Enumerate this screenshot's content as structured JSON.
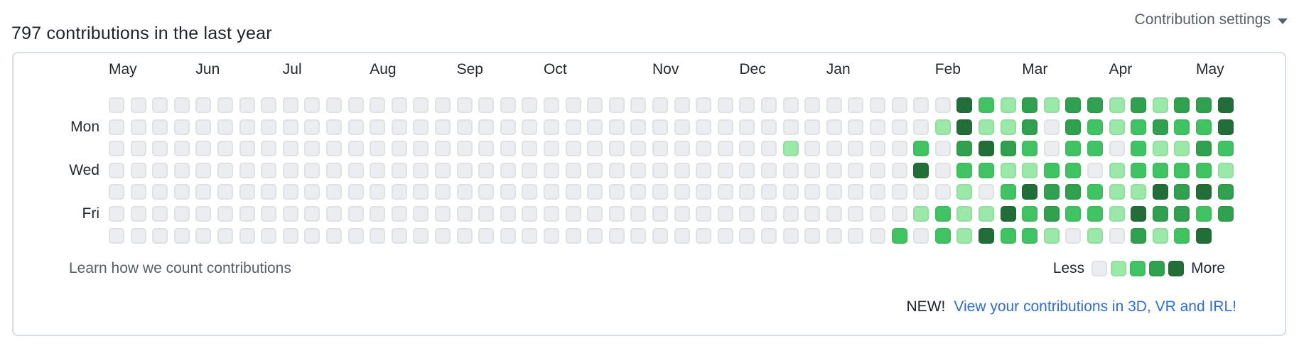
{
  "header": {
    "title": "797 contributions in the last year",
    "settings_label": "Contribution settings"
  },
  "calendar": {
    "type": "heatmap",
    "day_labels": [
      {
        "label": "Mon",
        "row": 1
      },
      {
        "label": "Wed",
        "row": 3
      },
      {
        "label": "Fri",
        "row": 5
      }
    ],
    "month_labels": [
      {
        "label": "May",
        "week": 0
      },
      {
        "label": "Jun",
        "week": 4
      },
      {
        "label": "Jul",
        "week": 8
      },
      {
        "label": "Aug",
        "week": 12
      },
      {
        "label": "Sep",
        "week": 16
      },
      {
        "label": "Oct",
        "week": 20
      },
      {
        "label": "Nov",
        "week": 25
      },
      {
        "label": "Dec",
        "week": 29
      },
      {
        "label": "Jan",
        "week": 33
      },
      {
        "label": "Feb",
        "week": 38
      },
      {
        "label": "Mar",
        "week": 42
      },
      {
        "label": "Apr",
        "week": 46
      },
      {
        "label": "May",
        "week": 50
      }
    ],
    "levels_palette": [
      "#ebedf0",
      "#9be9a8",
      "#40c463",
      "#30a14e",
      "#216e39"
    ],
    "weeks": [
      [
        0,
        0,
        0,
        0,
        0,
        0,
        0
      ],
      [
        0,
        0,
        0,
        0,
        0,
        0,
        0
      ],
      [
        0,
        0,
        0,
        0,
        0,
        0,
        0
      ],
      [
        0,
        0,
        0,
        0,
        0,
        0,
        0
      ],
      [
        0,
        0,
        0,
        0,
        0,
        0,
        0
      ],
      [
        0,
        0,
        0,
        0,
        0,
        0,
        0
      ],
      [
        0,
        0,
        0,
        0,
        0,
        0,
        0
      ],
      [
        0,
        0,
        0,
        0,
        0,
        0,
        0
      ],
      [
        0,
        0,
        0,
        0,
        0,
        0,
        0
      ],
      [
        0,
        0,
        0,
        0,
        0,
        0,
        0
      ],
      [
        0,
        0,
        0,
        0,
        0,
        0,
        0
      ],
      [
        0,
        0,
        0,
        0,
        0,
        0,
        0
      ],
      [
        0,
        0,
        0,
        0,
        0,
        0,
        0
      ],
      [
        0,
        0,
        0,
        0,
        0,
        0,
        0
      ],
      [
        0,
        0,
        0,
        0,
        0,
        0,
        0
      ],
      [
        0,
        0,
        0,
        0,
        0,
        0,
        0
      ],
      [
        0,
        0,
        0,
        0,
        0,
        0,
        0
      ],
      [
        0,
        0,
        0,
        0,
        0,
        0,
        0
      ],
      [
        0,
        0,
        0,
        0,
        0,
        0,
        0
      ],
      [
        0,
        0,
        0,
        0,
        0,
        0,
        0
      ],
      [
        0,
        0,
        0,
        0,
        0,
        0,
        0
      ],
      [
        0,
        0,
        0,
        0,
        0,
        0,
        0
      ],
      [
        0,
        0,
        0,
        0,
        0,
        0,
        0
      ],
      [
        0,
        0,
        0,
        0,
        0,
        0,
        0
      ],
      [
        0,
        0,
        0,
        0,
        0,
        0,
        0
      ],
      [
        0,
        0,
        0,
        0,
        0,
        0,
        0
      ],
      [
        0,
        0,
        0,
        0,
        0,
        0,
        0
      ],
      [
        0,
        0,
        0,
        0,
        0,
        0,
        0
      ],
      [
        0,
        0,
        0,
        0,
        0,
        0,
        0
      ],
      [
        0,
        0,
        0,
        0,
        0,
        0,
        0
      ],
      [
        0,
        0,
        0,
        0,
        0,
        0,
        0
      ],
      [
        0,
        0,
        1,
        0,
        0,
        0,
        0
      ],
      [
        0,
        0,
        0,
        0,
        0,
        0,
        0
      ],
      [
        0,
        0,
        0,
        0,
        0,
        0,
        0
      ],
      [
        0,
        0,
        0,
        0,
        0,
        0,
        0
      ],
      [
        0,
        0,
        0,
        0,
        0,
        0,
        0
      ],
      [
        0,
        0,
        0,
        0,
        0,
        0,
        2
      ],
      [
        0,
        0,
        2,
        4,
        0,
        1,
        0
      ],
      [
        0,
        1,
        0,
        0,
        0,
        2,
        2
      ],
      [
        4,
        4,
        3,
        2,
        1,
        1,
        1
      ],
      [
        2,
        1,
        4,
        2,
        0,
        1,
        4
      ],
      [
        1,
        1,
        3,
        1,
        2,
        4,
        2
      ],
      [
        3,
        3,
        2,
        1,
        4,
        2,
        2
      ],
      [
        1,
        0,
        0,
        2,
        3,
        3,
        1
      ],
      [
        3,
        3,
        2,
        2,
        3,
        2,
        0
      ],
      [
        3,
        2,
        2,
        0,
        2,
        2,
        1
      ],
      [
        1,
        1,
        0,
        1,
        1,
        1,
        0
      ],
      [
        3,
        2,
        2,
        2,
        1,
        4,
        3
      ],
      [
        1,
        3,
        1,
        2,
        4,
        3,
        1
      ],
      [
        3,
        2,
        1,
        2,
        3,
        3,
        2
      ],
      [
        3,
        2,
        3,
        2,
        4,
        2,
        4
      ],
      [
        4,
        4,
        2,
        1,
        3,
        3,
        null
      ]
    ]
  },
  "footer": {
    "learn_link": "Learn how we count contributions",
    "legend": {
      "less": "Less",
      "more": "More"
    },
    "banner": {
      "prefix": "NEW!",
      "link": "View your contributions in 3D, VR and IRL!"
    }
  }
}
